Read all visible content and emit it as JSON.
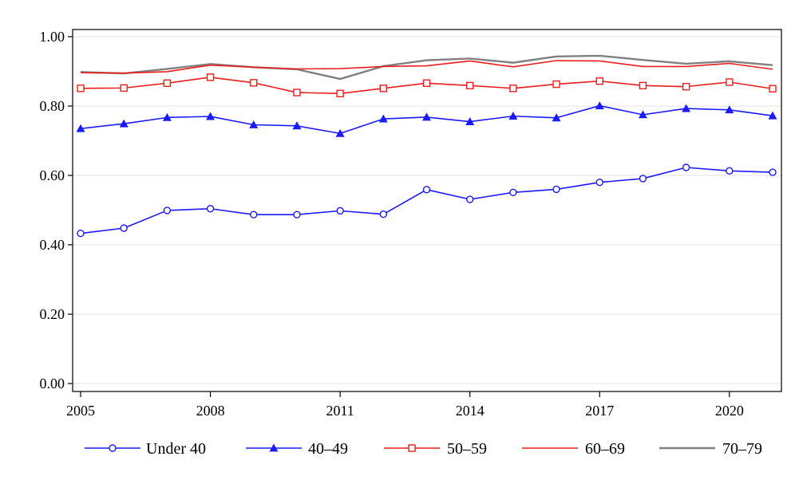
{
  "chart_data": {
    "type": "line",
    "title": "",
    "xlabel": "",
    "ylabel": "",
    "x": [
      2005,
      2006,
      2007,
      2008,
      2009,
      2010,
      2011,
      2012,
      2013,
      2014,
      2015,
      2016,
      2017,
      2018,
      2019,
      2020,
      2021
    ],
    "xlim": [
      2005,
      2021
    ],
    "ylim": [
      0,
      1.0
    ],
    "x_ticks": [
      2005,
      2008,
      2011,
      2014,
      2017,
      2020
    ],
    "x_tick_labels": [
      "2005",
      "2008",
      "2011",
      "2014",
      "2017",
      "2020"
    ],
    "y_ticks": [
      0,
      0.2,
      0.4,
      0.6,
      0.8,
      1.0
    ],
    "y_tick_labels": [
      "0.00",
      "0.20",
      "0.40",
      "0.60",
      "0.80",
      "1.00"
    ],
    "grid": "horizontal",
    "legend_placement": "bottom",
    "series": [
      {
        "name": "Under 40",
        "color": "#1a1aff",
        "marker": "hollow-circle",
        "values": [
          0.433,
          0.448,
          0.499,
          0.504,
          0.487,
          0.487,
          0.498,
          0.488,
          0.559,
          0.531,
          0.551,
          0.56,
          0.58,
          0.591,
          0.623,
          0.613,
          0.609
        ]
      },
      {
        "name": "40–49",
        "color": "#1a1aff",
        "marker": "filled-triangle",
        "values": [
          0.735,
          0.749,
          0.767,
          0.77,
          0.746,
          0.743,
          0.721,
          0.763,
          0.768,
          0.755,
          0.771,
          0.766,
          0.801,
          0.775,
          0.793,
          0.789,
          0.772
        ]
      },
      {
        "name": "50–59",
        "color": "#ee1c1c",
        "marker": "hollow-square",
        "values": [
          0.851,
          0.852,
          0.866,
          0.883,
          0.867,
          0.839,
          0.836,
          0.851,
          0.866,
          0.859,
          0.851,
          0.863,
          0.872,
          0.859,
          0.856,
          0.869,
          0.85
        ]
      },
      {
        "name": "60–69",
        "color": "#ee1c1c",
        "marker": "none",
        "values": [
          0.896,
          0.895,
          0.899,
          0.918,
          0.912,
          0.907,
          0.908,
          0.914,
          0.916,
          0.93,
          0.913,
          0.931,
          0.93,
          0.914,
          0.914,
          0.923,
          0.906
        ]
      },
      {
        "name": "70–79",
        "color": "#808080",
        "marker": "none",
        "values": [
          0.898,
          0.894,
          0.907,
          0.921,
          0.912,
          0.906,
          0.878,
          0.915,
          0.932,
          0.937,
          0.925,
          0.943,
          0.945,
          0.933,
          0.922,
          0.929,
          0.918
        ]
      }
    ]
  }
}
